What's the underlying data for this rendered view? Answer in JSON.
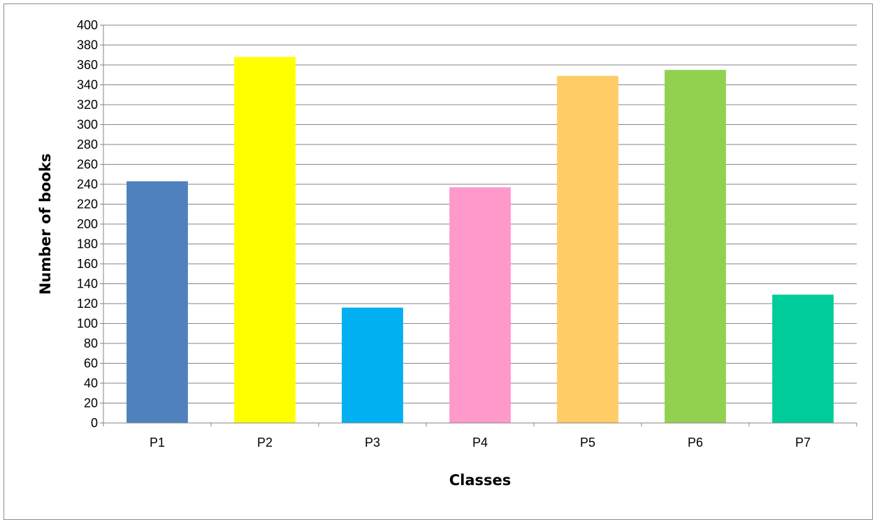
{
  "chart_data": {
    "type": "bar",
    "title": "",
    "xlabel": "Classes",
    "ylabel": "Number of books",
    "categories": [
      "P1",
      "P2",
      "P3",
      "P4",
      "P5",
      "P6",
      "P7"
    ],
    "values": [
      243,
      368,
      116,
      237,
      349,
      355,
      129
    ],
    "colors": [
      "#4f81bd",
      "#ffff00",
      "#00b0f0",
      "#ff99cc",
      "#ffcc66",
      "#92d050",
      "#00cc99"
    ],
    "ylim": [
      0,
      400
    ],
    "ytick_step": 20,
    "ytick_labels": [
      "0",
      "20",
      "40",
      "60",
      "80",
      "100",
      "120",
      "140",
      "160",
      "180",
      "200",
      "220",
      "240",
      "260",
      "280",
      "300",
      "320",
      "340",
      "360",
      "380",
      "400"
    ],
    "grid": true,
    "legend": "none"
  }
}
